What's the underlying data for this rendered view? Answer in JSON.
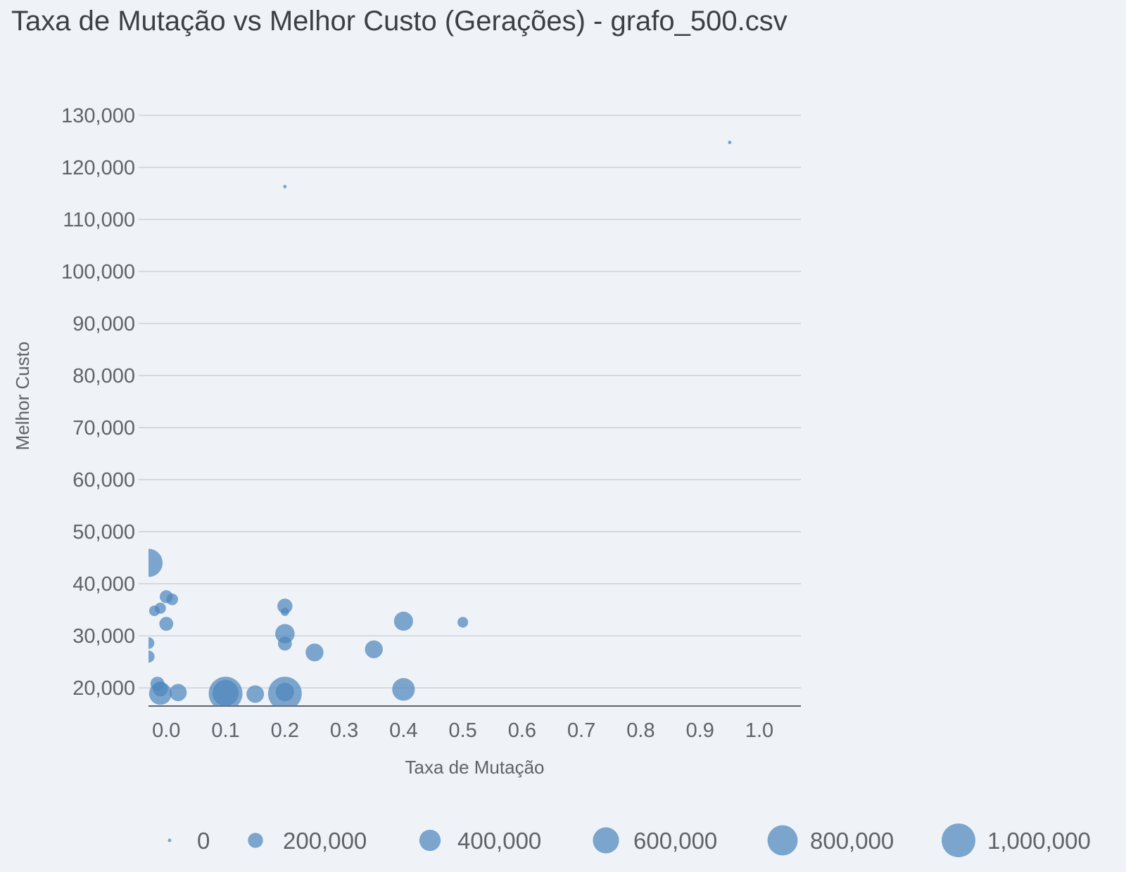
{
  "chart_data": {
    "type": "scatter",
    "title": "Taxa de Mutação vs Melhor Custo (Gerações) - grafo_500.csv",
    "xlabel": "Taxa de Mutação",
    "ylabel": "Melhor Custo",
    "xlim": [
      -0.03,
      1.07
    ],
    "ylim": [
      16500,
      130000
    ],
    "x_ticks": [
      0.0,
      0.1,
      0.2,
      0.3,
      0.4,
      0.5,
      0.6,
      0.7,
      0.8,
      0.9,
      1.0
    ],
    "x_tick_labels": [
      "0.0",
      "0.1",
      "0.2",
      "0.3",
      "0.4",
      "0.5",
      "0.6",
      "0.7",
      "0.8",
      "0.9",
      "1.0"
    ],
    "y_ticks": [
      20000,
      30000,
      40000,
      50000,
      60000,
      70000,
      80000,
      90000,
      100000,
      110000,
      120000,
      130000
    ],
    "y_tick_labels": [
      "20,000",
      "30,000",
      "40,000",
      "50,000",
      "60,000",
      "70,000",
      "80,000",
      "90,000",
      "100,000",
      "110,000",
      "120,000",
      "130,000"
    ],
    "grid": true,
    "size_encoding": "Gerações",
    "color": "#4f86bd",
    "points": [
      {
        "x": 0.95,
        "y": 124800,
        "size": 10000
      },
      {
        "x": 0.2,
        "y": 116300,
        "size": 10000
      },
      {
        "x": -0.03,
        "y": 44000,
        "size": 700000
      },
      {
        "x": 0.0,
        "y": 37500,
        "size": 150000
      },
      {
        "x": 0.01,
        "y": 37000,
        "size": 120000
      },
      {
        "x": -0.02,
        "y": 34800,
        "size": 100000
      },
      {
        "x": -0.01,
        "y": 35300,
        "size": 110000
      },
      {
        "x": 0.0,
        "y": 32300,
        "size": 170000
      },
      {
        "x": 0.2,
        "y": 35700,
        "size": 200000
      },
      {
        "x": 0.2,
        "y": 34600,
        "size": 60000
      },
      {
        "x": 0.2,
        "y": 30400,
        "size": 330000
      },
      {
        "x": 0.2,
        "y": 28500,
        "size": 170000
      },
      {
        "x": 0.4,
        "y": 32800,
        "size": 320000
      },
      {
        "x": 0.5,
        "y": 32600,
        "size": 100000
      },
      {
        "x": -0.03,
        "y": 28600,
        "size": 120000
      },
      {
        "x": -0.03,
        "y": 26000,
        "size": 130000
      },
      {
        "x": 0.25,
        "y": 26800,
        "size": 280000
      },
      {
        "x": 0.35,
        "y": 27400,
        "size": 280000
      },
      {
        "x": -0.015,
        "y": 20800,
        "size": 170000
      },
      {
        "x": -0.01,
        "y": 19800,
        "size": 200000
      },
      {
        "x": -0.01,
        "y": 18900,
        "size": 450000
      },
      {
        "x": 0.02,
        "y": 19100,
        "size": 260000
      },
      {
        "x": 0.1,
        "y": 18900,
        "size": 1000000
      },
      {
        "x": 0.1,
        "y": 19000,
        "size": 600000
      },
      {
        "x": 0.15,
        "y": 18800,
        "size": 270000
      },
      {
        "x": 0.2,
        "y": 18900,
        "size": 1000000
      },
      {
        "x": 0.2,
        "y": 19200,
        "size": 300000
      },
      {
        "x": 0.4,
        "y": 19700,
        "size": 450000
      }
    ],
    "legend": {
      "placement": "bottom",
      "entries": [
        {
          "label": "0",
          "value": 0
        },
        {
          "label": "200,000",
          "value": 200000
        },
        {
          "label": "400,000",
          "value": 400000
        },
        {
          "label": "600,000",
          "value": 600000
        },
        {
          "label": "800,000",
          "value": 800000
        },
        {
          "label": "1,000,000",
          "value": 1000000
        }
      ]
    }
  }
}
